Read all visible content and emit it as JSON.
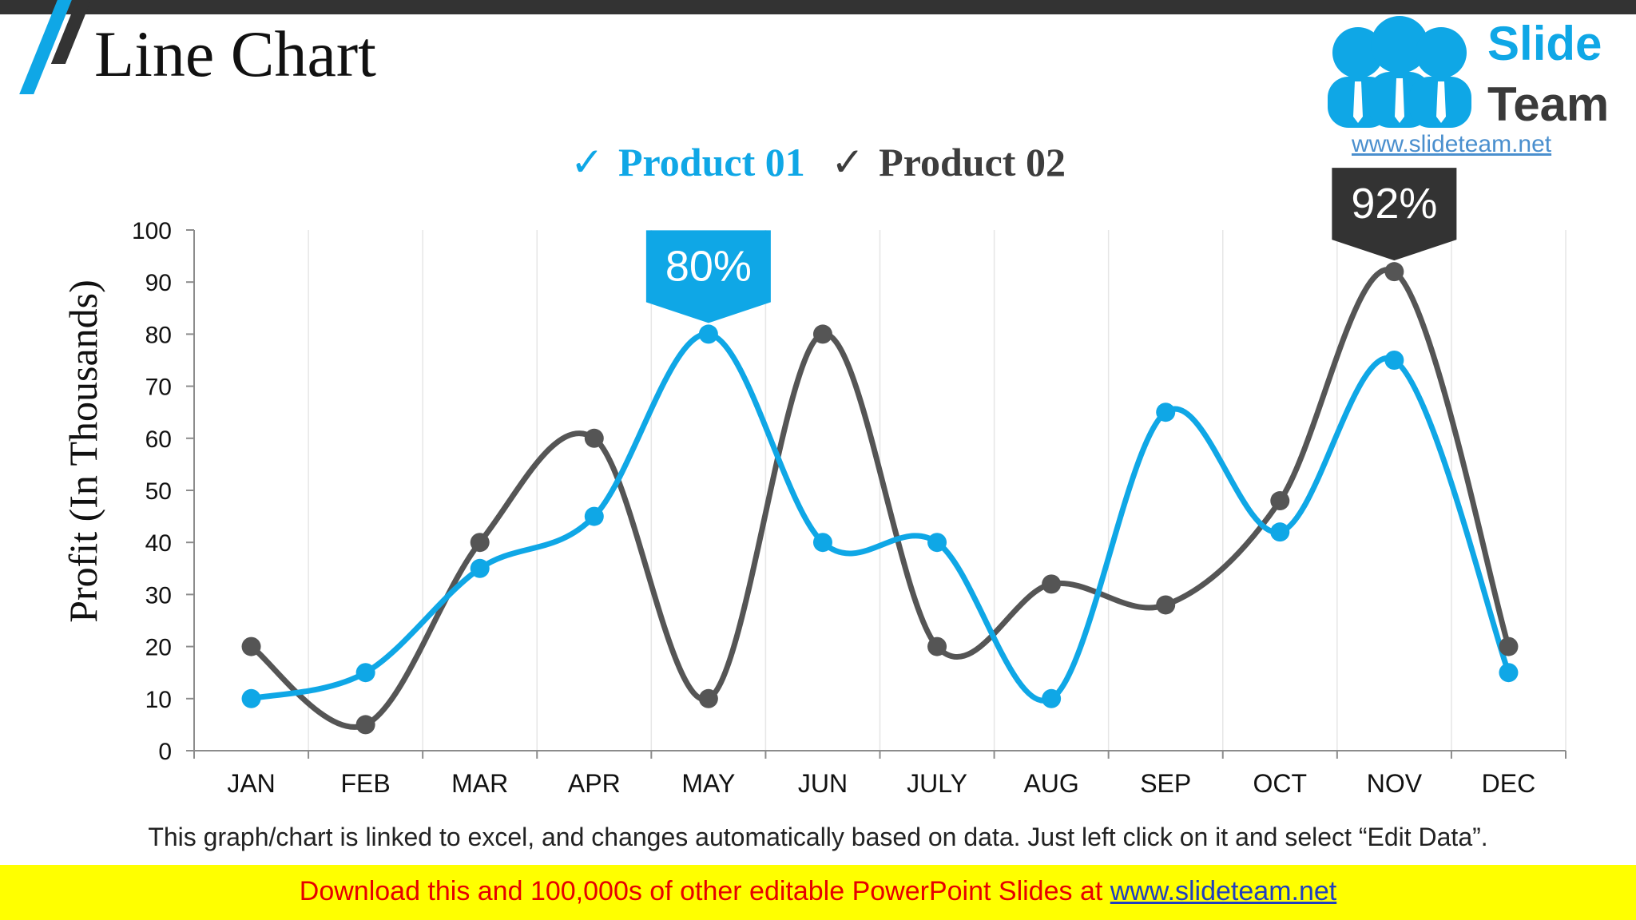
{
  "slide": {
    "title": "Line Chart"
  },
  "logo": {
    "slide_word": "Slide",
    "team_word": "Team",
    "url": "www.slideteam.net"
  },
  "colors": {
    "product1": "#0fa7e6",
    "product2": "#555555",
    "callout2": "#333333"
  },
  "chart_data": {
    "type": "line",
    "categories": [
      "JAN",
      "FEB",
      "MAR",
      "APR",
      "MAY",
      "JUN",
      "JULY",
      "AUG",
      "SEP",
      "OCT",
      "NOV",
      "DEC"
    ],
    "series": [
      {
        "name": "Product 01",
        "values": [
          10,
          15,
          35,
          45,
          80,
          40,
          40,
          10,
          65,
          42,
          75,
          15
        ]
      },
      {
        "name": "Product 02",
        "values": [
          20,
          5,
          40,
          60,
          10,
          80,
          20,
          32,
          28,
          48,
          92,
          20
        ]
      }
    ],
    "ylabel": "Profit (In Thousands)",
    "ylim": [
      0,
      100
    ],
    "yticks": [
      0,
      10,
      20,
      30,
      40,
      50,
      60,
      70,
      80,
      90,
      100
    ],
    "grid": true,
    "legend_position": "top",
    "legend_mark": "✓",
    "callouts": [
      {
        "series": 0,
        "category": "MAY",
        "label": "80%"
      },
      {
        "series": 1,
        "category": "NOV",
        "label": "92%"
      }
    ]
  },
  "note": "This graph/chart is linked to excel, and changes automatically based on data. Just left click on it and select “Edit Data”.",
  "footer": {
    "text": "Download this and 100,000s of other editable PowerPoint Slides at ",
    "link": "www.slideteam.net"
  }
}
